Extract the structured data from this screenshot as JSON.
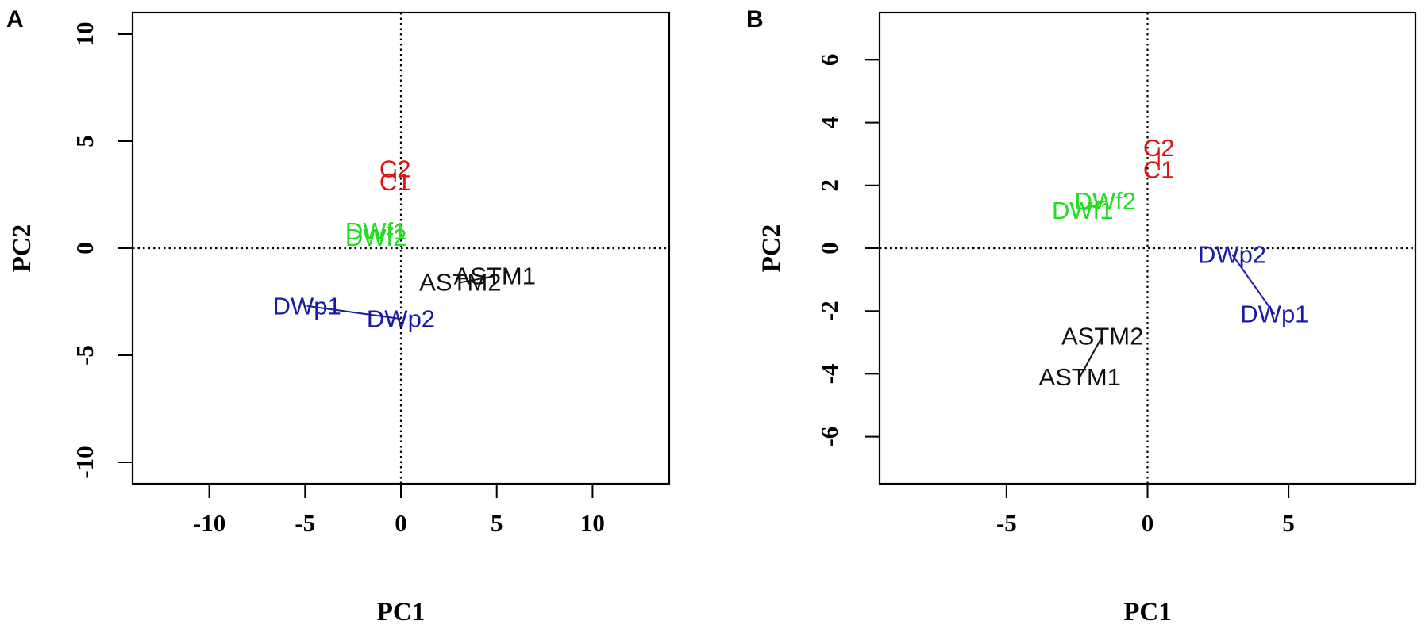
{
  "chart_data": [
    {
      "panel": "A",
      "type": "scatter",
      "xlabel": "PC1",
      "ylabel": "PC2",
      "xlim": [
        -14,
        14
      ],
      "ylim": [
        -11,
        11
      ],
      "x_ticks": [
        -10,
        -5,
        0,
        5,
        10
      ],
      "y_ticks": [
        -10,
        -5,
        0,
        5,
        10
      ],
      "reference_lines": {
        "x": 0,
        "y": 0,
        "style": "dotted"
      },
      "grid": false,
      "points": [
        {
          "label": "C2",
          "x": -0.3,
          "y": 3.7,
          "color": "#dd1111"
        },
        {
          "label": "C1",
          "x": -0.3,
          "y": 3.1,
          "color": "#dd1111"
        },
        {
          "label": "DWf1",
          "x": -1.3,
          "y": 0.8,
          "color": "#22dd22"
        },
        {
          "label": "DWf2",
          "x": -1.3,
          "y": 0.5,
          "color": "#22dd22"
        },
        {
          "label": "ASTM1",
          "x": 4.9,
          "y": -1.3,
          "color": "#111111"
        },
        {
          "label": "ASTM2",
          "x": 3.1,
          "y": -1.6,
          "color": "#111111"
        },
        {
          "label": "DWp1",
          "x": -4.9,
          "y": -2.7,
          "color": "#1a1aa8"
        },
        {
          "label": "DWp2",
          "x": 0,
          "y": -3.3,
          "color": "#1a1aa8"
        }
      ],
      "connectors": [
        [
          "DWp1",
          "DWp2"
        ],
        [
          "ASTM1",
          "ASTM2"
        ],
        [
          "C1",
          "C2"
        ],
        [
          "DWf1",
          "DWf2"
        ]
      ]
    },
    {
      "panel": "B",
      "type": "scatter",
      "xlabel": "PC1",
      "ylabel": "PC2",
      "xlim": [
        -9.5,
        9.5
      ],
      "ylim": [
        -7.5,
        7.5
      ],
      "x_ticks": [
        -5,
        0,
        5
      ],
      "y_ticks": [
        -6,
        -4,
        -2,
        0,
        2,
        4,
        6
      ],
      "reference_lines": {
        "x": 0,
        "y": 0,
        "style": "dotted"
      },
      "grid": false,
      "points": [
        {
          "label": "C2",
          "x": 0.4,
          "y": 3.2,
          "color": "#dd1111"
        },
        {
          "label": "C1",
          "x": 0.4,
          "y": 2.5,
          "color": "#dd1111"
        },
        {
          "label": "DWf2",
          "x": -1.5,
          "y": 1.5,
          "color": "#22dd22"
        },
        {
          "label": "DWf1",
          "x": -2.3,
          "y": 1.2,
          "color": "#22dd22"
        },
        {
          "label": "DWp2",
          "x": 3.0,
          "y": -0.2,
          "color": "#1a1aa8"
        },
        {
          "label": "DWp1",
          "x": 4.5,
          "y": -2.1,
          "color": "#1a1aa8"
        },
        {
          "label": "ASTM2",
          "x": -1.6,
          "y": -2.8,
          "color": "#111111"
        },
        {
          "label": "ASTM1",
          "x": -2.4,
          "y": -4.1,
          "color": "#111111"
        }
      ],
      "connectors": [
        [
          "DWp1",
          "DWp2"
        ],
        [
          "ASTM1",
          "ASTM2"
        ],
        [
          "C1",
          "C2"
        ],
        [
          "DWf1",
          "DWf2"
        ]
      ]
    }
  ]
}
